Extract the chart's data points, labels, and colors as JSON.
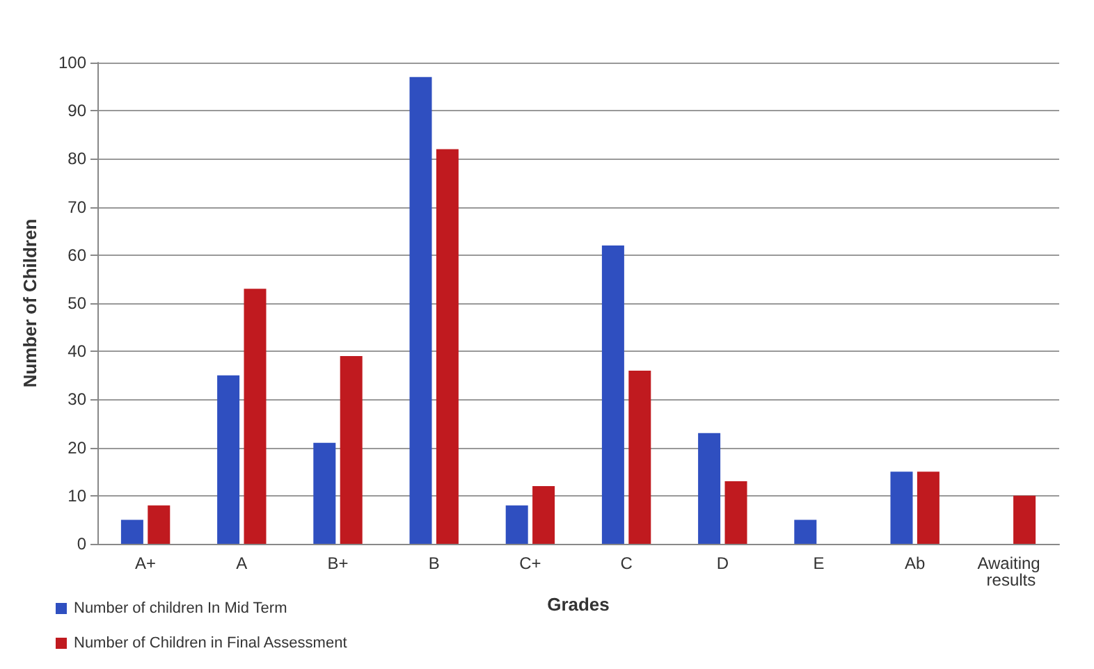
{
  "chart_data": {
    "type": "bar",
    "xlabel": "Grades",
    "ylabel": "Number of Children",
    "categories": [
      "A+",
      "A",
      "B+",
      "B",
      "C+",
      "C",
      "D",
      "E",
      "Ab",
      "Awaiting results"
    ],
    "series": [
      {
        "name": "Number of children In Mid Term",
        "color": "#2f4fc0",
        "values": [
          5,
          35,
          21,
          97,
          8,
          62,
          23,
          5,
          15,
          null
        ]
      },
      {
        "name": "Number of Children in Final Assessment",
        "color": "#c01a1f",
        "values": [
          8,
          53,
          39,
          82,
          12,
          36,
          13,
          null,
          15,
          10
        ]
      }
    ],
    "ylim": [
      0,
      100
    ],
    "yticks": [
      0,
      10,
      20,
      30,
      40,
      50,
      60,
      70,
      80,
      90,
      100
    ],
    "grid": "y",
    "legend": "bottom left"
  }
}
